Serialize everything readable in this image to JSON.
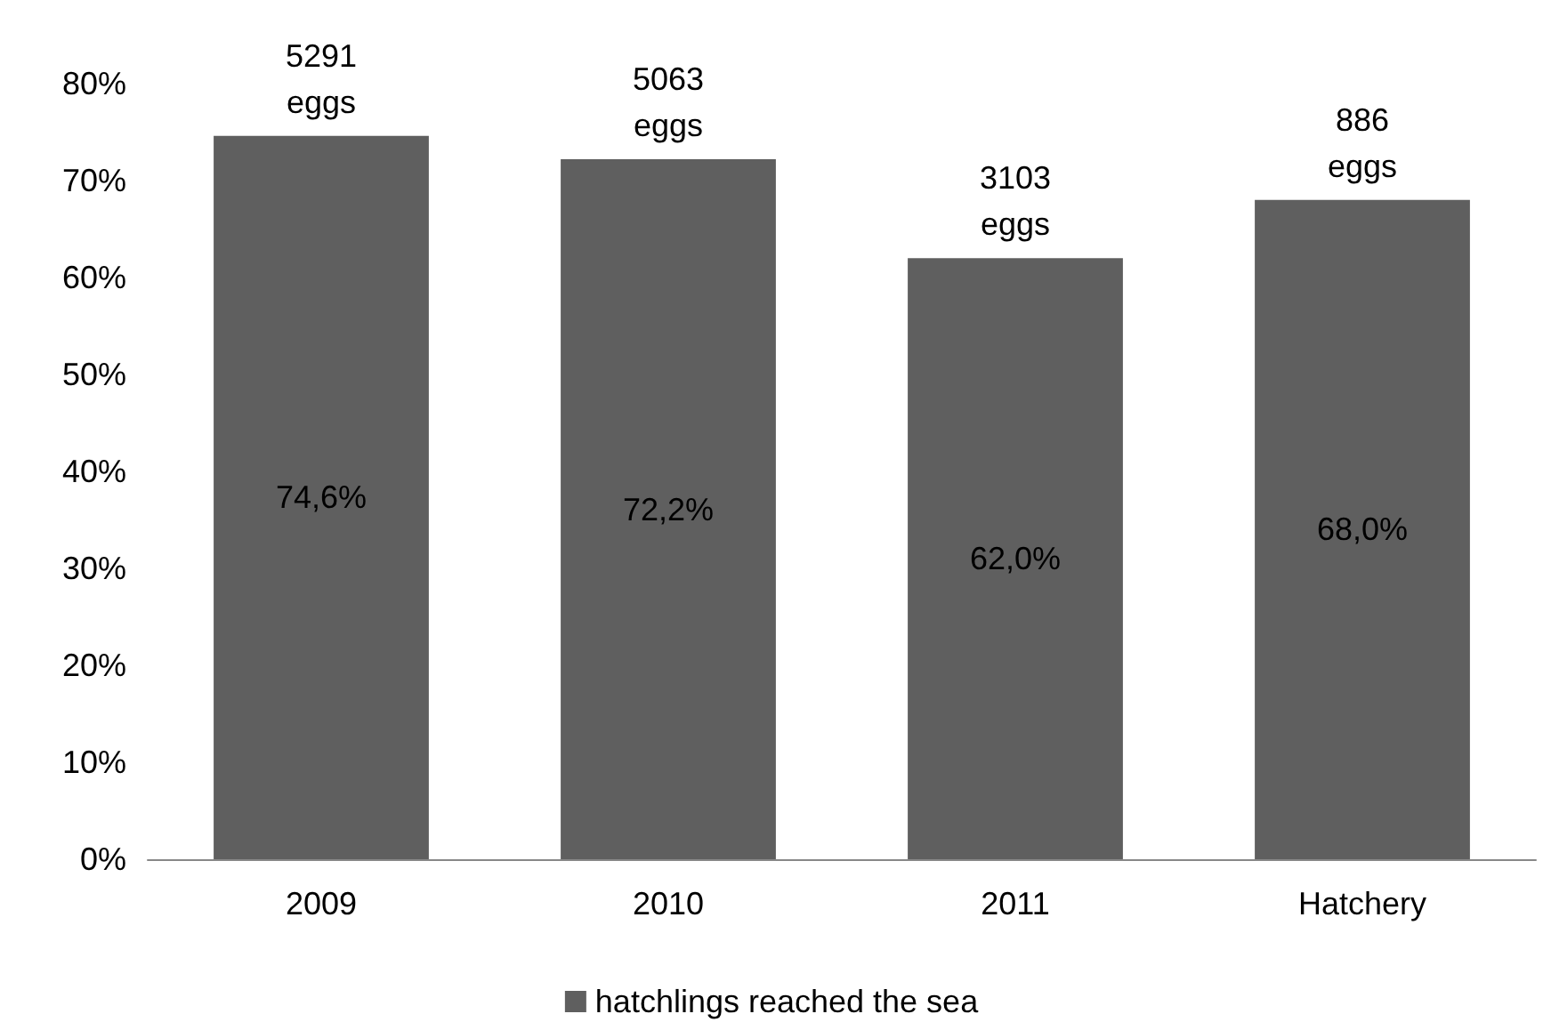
{
  "chart_data": {
    "type": "bar",
    "categories": [
      "2009",
      "2010",
      "2011",
      "Hatchery"
    ],
    "series": [
      {
        "name": "hatchlings reached the sea",
        "color": "#5f5f5f",
        "values": [
          74.6,
          72.2,
          62.0,
          68.0
        ],
        "value_labels": [
          "74,6%",
          "72,2%",
          "62,0%",
          "68,0%"
        ]
      }
    ],
    "ylim": [
      0,
      80
    ],
    "yticks": [
      {
        "value": 0,
        "label": "0%"
      },
      {
        "value": 10,
        "label": "10%"
      },
      {
        "value": 20,
        "label": "20%"
      },
      {
        "value": 30,
        "label": "30%"
      },
      {
        "value": 40,
        "label": "40%"
      },
      {
        "value": 50,
        "label": "50%"
      },
      {
        "value": 60,
        "label": "60%"
      },
      {
        "value": 70,
        "label": "70%"
      },
      {
        "value": 80,
        "label": "80%"
      }
    ],
    "annotations": [
      {
        "text": "5291 eggs",
        "x": "2009",
        "y": 74.6
      },
      {
        "text": "5063 eggs",
        "x": "2010",
        "y": 72.2
      },
      {
        "text": "3103 eggs",
        "x": "2011",
        "y": 62.0
      },
      {
        "text": "886 eggs",
        "x": "Hatchery",
        "y": 68.0
      }
    ],
    "grid": false,
    "legend": "bottom"
  }
}
